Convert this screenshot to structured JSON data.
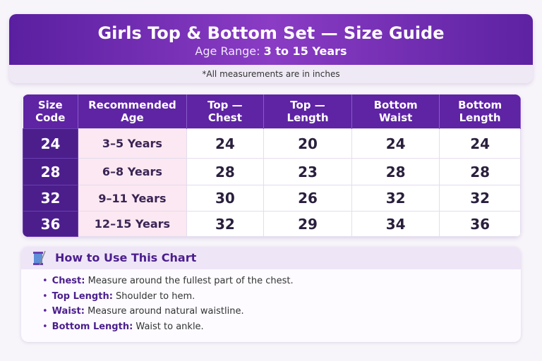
{
  "header": {
    "title": "Girls Top & Bottom Set — Size Guide",
    "subtitle_label": "Age Range:",
    "subtitle_value": "3 to 15 Years",
    "note": "*All measurements are in inches"
  },
  "table": {
    "columns": [
      "Size Code",
      "Recommended Age",
      "Top — Chest",
      "Top — Length",
      "Bottom Waist",
      "Bottom Length"
    ],
    "rows": [
      [
        24,
        "3–5 Years",
        24,
        20,
        24,
        24
      ],
      [
        28,
        "6–8 Years",
        28,
        23,
        28,
        28
      ],
      [
        32,
        "9–11 Years",
        30,
        26,
        32,
        32
      ],
      [
        36,
        "12–15 Years",
        32,
        29,
        34,
        36
      ]
    ]
  },
  "guide": {
    "title": "How to Use This Chart",
    "items": [
      {
        "term": "Chest:",
        "text": "Measure around the fullest part of the chest."
      },
      {
        "term": "Top Length:",
        "text": "Shoulder to hem."
      },
      {
        "term": "Waist:",
        "text": "Measure around natural waistline."
      },
      {
        "term": "Bottom Length:",
        "text": "Waist to ankle."
      }
    ]
  }
}
